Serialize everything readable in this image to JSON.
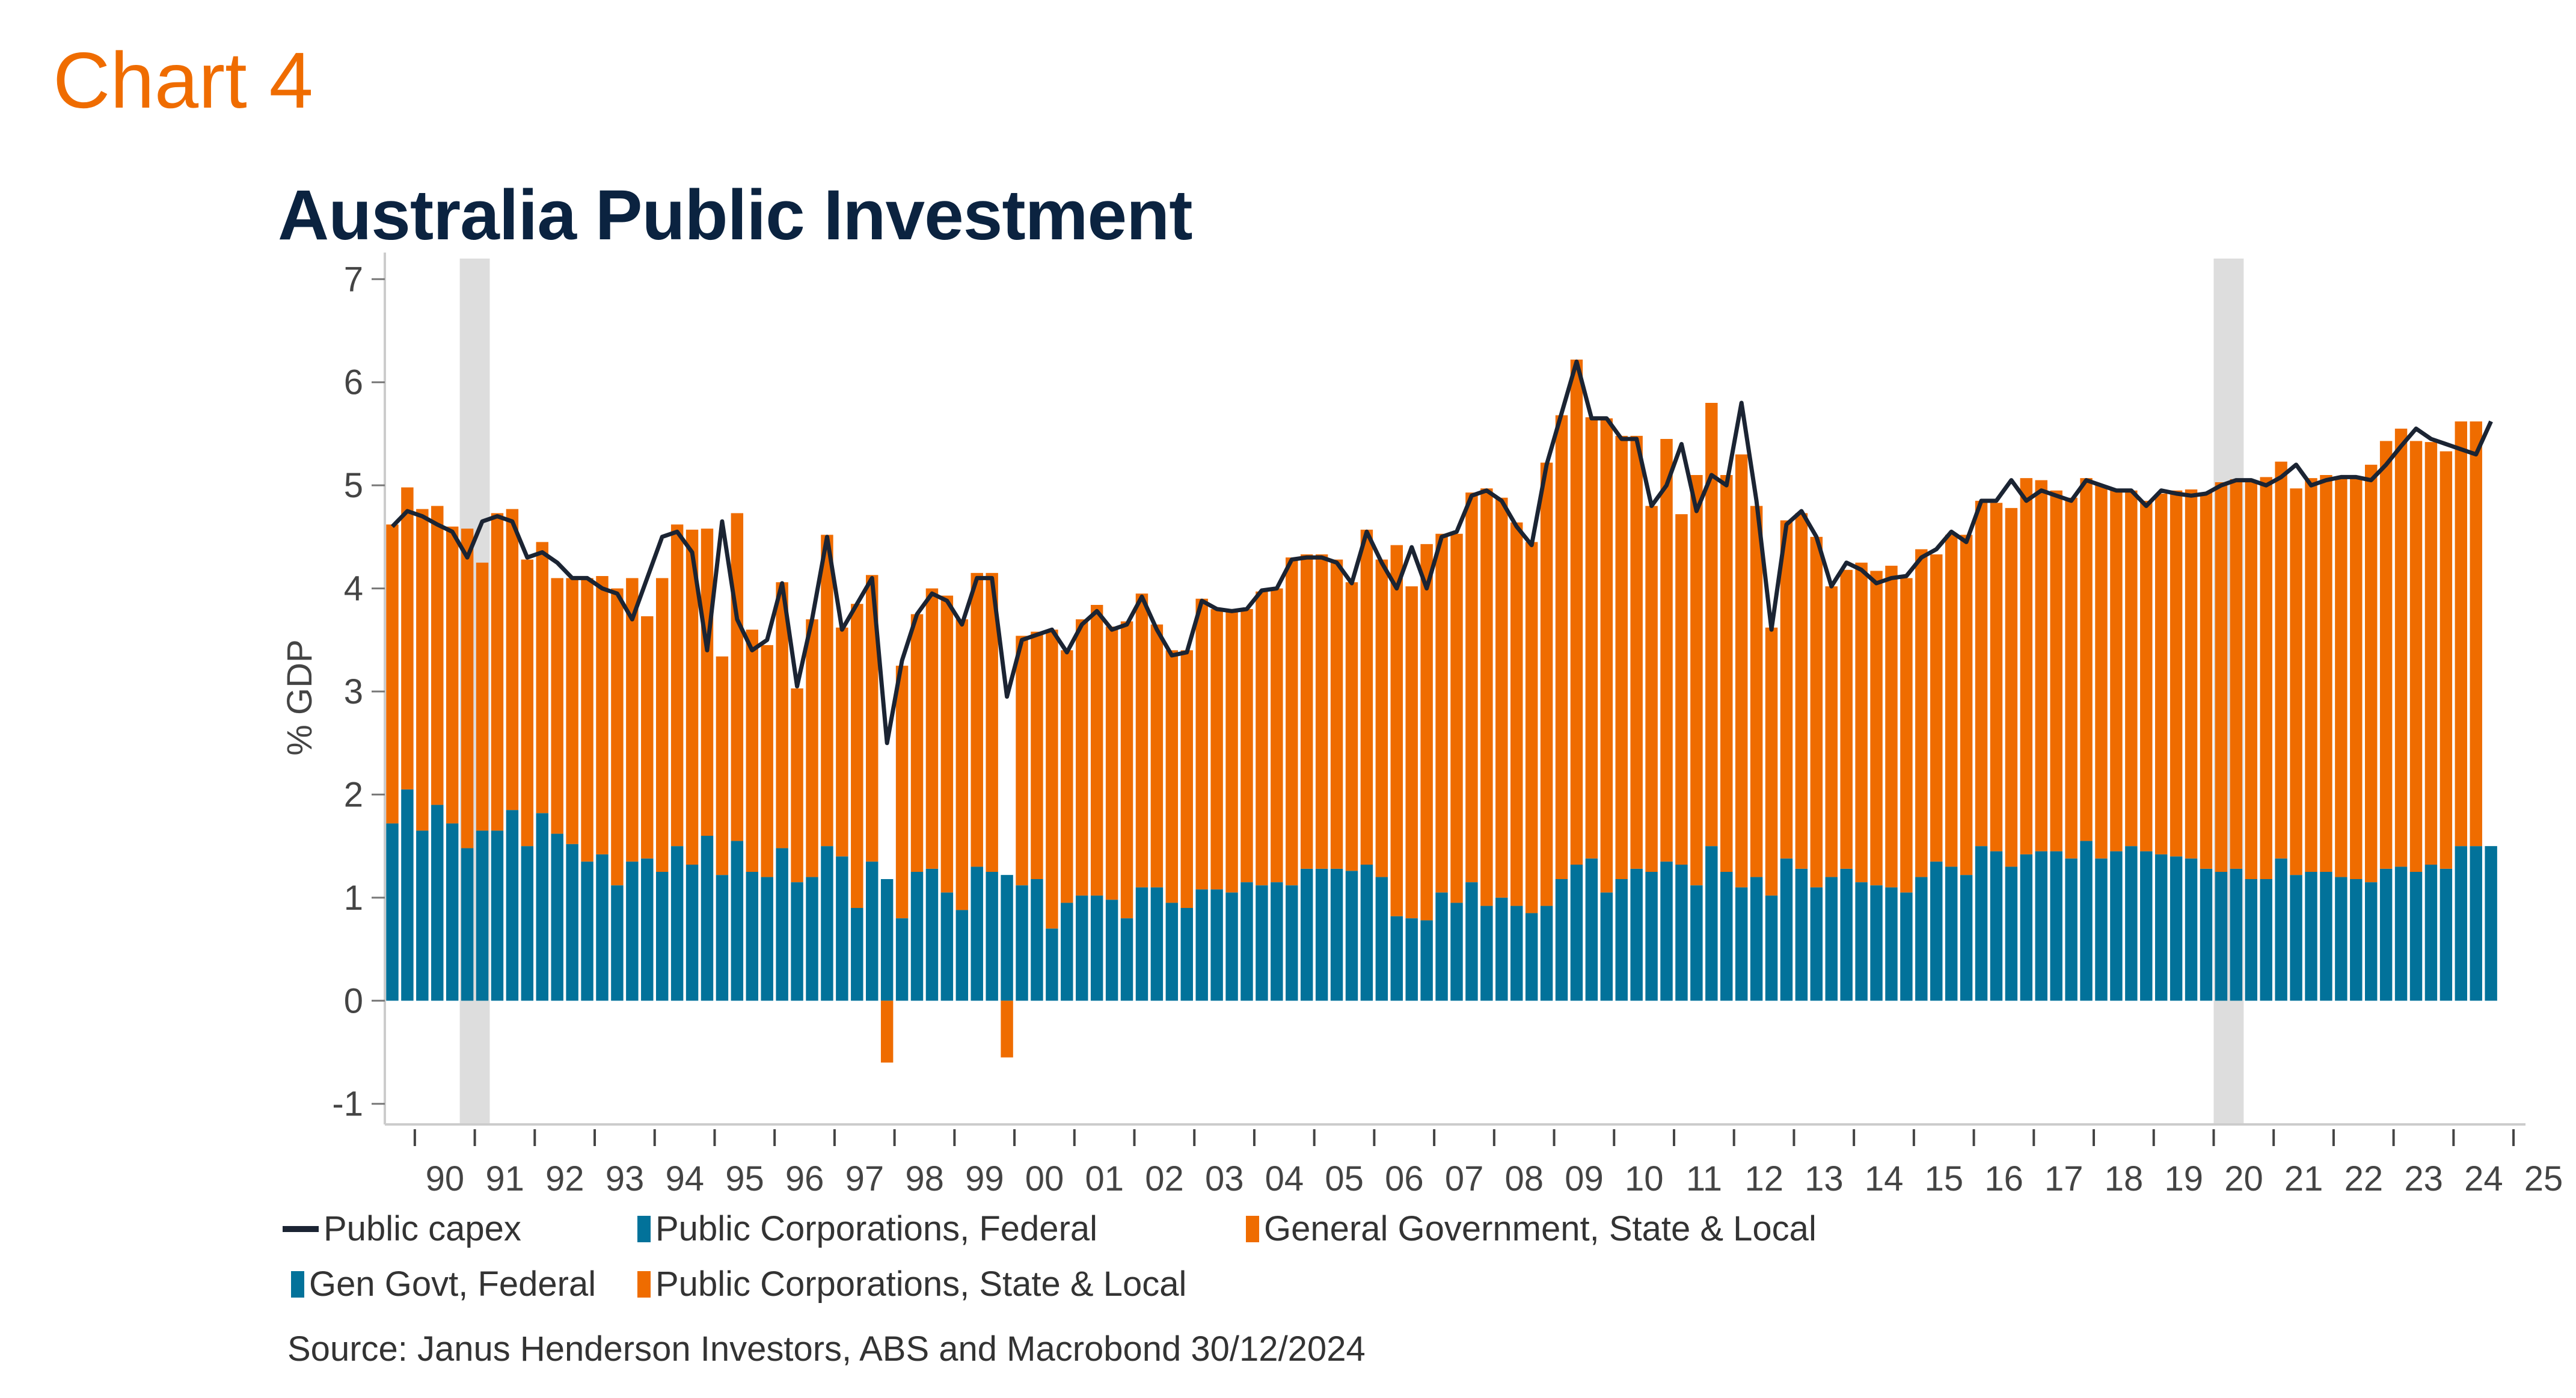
{
  "header": {
    "chart_label": "Chart 4",
    "title": "Australia Public Investment"
  },
  "colors": {
    "chart_label": "#ef6c00",
    "title": "#0b2340",
    "federal_blue": "#02729a",
    "state_local_orange": "#ef6c00",
    "capex_line": "#1b2433",
    "recession_shade": "#dddddd"
  },
  "legend": {
    "items": [
      {
        "label": "Public capex",
        "kind": "line",
        "color": "#1b2433"
      },
      {
        "label": "Public Corporations, Federal",
        "kind": "bar",
        "color": "#02729a"
      },
      {
        "label": "General Government, State & Local",
        "kind": "bar",
        "color": "#ef6c00"
      },
      {
        "label": "Gen Govt, Federal",
        "kind": "bar",
        "color": "#02729a"
      },
      {
        "label": "Public Corporations, State & Local",
        "kind": "bar",
        "color": "#ef6c00"
      }
    ]
  },
  "source": "Source: Janus Henderson Investors, ABS and Macrobond  30/12/2024",
  "chart_data": {
    "type": "bar",
    "stacked": true,
    "title": "Australia Public Investment",
    "xlabel": "",
    "ylabel": "% GDP",
    "ylim": [
      -1.2,
      7.2
    ],
    "yticks": [
      -1,
      0,
      1,
      2,
      3,
      4,
      5,
      6,
      7
    ],
    "xtick_labels": [
      "90",
      "91",
      "92",
      "93",
      "94",
      "95",
      "96",
      "97",
      "98",
      "99",
      "00",
      "01",
      "02",
      "03",
      "04",
      "05",
      "06",
      "07",
      "08",
      "09",
      "10",
      "11",
      "12",
      "13",
      "14",
      "15",
      "16",
      "17",
      "18",
      "19",
      "20",
      "21",
      "22",
      "23",
      "24",
      "25"
    ],
    "x_start": "1989Q3",
    "frequency": "quarterly",
    "x_range_years": [
      1989.5,
      2025.2
    ],
    "recession_shading": [
      [
        1990.75,
        1991.25
      ],
      [
        2020.0,
        2020.5
      ]
    ],
    "grid": false,
    "legend_position": "bottom",
    "series": [
      {
        "name": "Federal (Gen Govt + Public Corporations)",
        "color": "#02729a",
        "values": [
          1.72,
          2.05,
          1.65,
          1.9,
          1.72,
          1.48,
          1.65,
          1.65,
          1.85,
          1.5,
          1.82,
          1.62,
          1.52,
          1.35,
          1.42,
          1.12,
          1.35,
          1.38,
          1.25,
          1.5,
          1.32,
          1.6,
          1.22,
          1.55,
          1.25,
          1.2,
          1.48,
          1.15,
          1.2,
          1.5,
          1.4,
          0.9,
          1.35,
          1.18,
          0.8,
          1.25,
          1.28,
          1.05,
          0.88,
          1.3,
          1.25,
          1.22,
          1.12,
          1.18,
          0.7,
          0.95,
          1.02,
          1.02,
          0.98,
          0.8,
          1.1,
          1.1,
          0.95,
          0.9,
          1.08,
          1.08,
          1.05,
          1.15,
          1.12,
          1.15,
          1.12,
          1.28,
          1.28,
          1.28,
          1.26,
          1.32,
          1.2,
          0.82,
          0.8,
          0.78,
          1.05,
          0.95,
          1.15,
          0.92,
          1.0,
          0.92,
          0.85,
          0.92,
          1.18,
          1.32,
          1.38,
          1.05,
          1.18,
          1.28,
          1.25,
          1.35,
          1.32,
          1.12,
          1.5,
          1.25,
          1.1,
          1.2,
          1.02,
          1.38,
          1.28,
          1.1,
          1.2,
          1.28,
          1.15,
          1.12,
          1.1,
          1.05,
          1.2,
          1.35,
          1.3,
          1.22,
          1.5,
          1.45,
          1.3,
          1.42,
          1.45,
          1.45,
          1.38,
          1.55,
          1.38,
          1.45,
          1.5,
          1.45,
          1.42,
          1.4,
          1.38,
          1.28,
          1.25,
          1.28,
          1.18,
          1.18,
          1.38,
          1.22,
          1.25,
          1.25,
          1.2,
          1.18,
          1.15,
          1.28,
          1.3,
          1.25,
          1.32,
          1.28,
          1.5,
          1.5,
          1.5
        ]
      },
      {
        "name": "State & Local (Gen Govt + Public Corporations)",
        "color": "#ef6c00",
        "values": [
          2.9,
          2.93,
          3.12,
          2.9,
          2.88,
          3.1,
          2.6,
          3.08,
          2.92,
          2.78,
          2.63,
          2.48,
          2.58,
          2.75,
          2.7,
          2.88,
          2.75,
          2.35,
          2.85,
          3.12,
          3.25,
          2.98,
          2.12,
          3.18,
          2.35,
          2.25,
          2.58,
          1.88,
          2.5,
          3.02,
          2.22,
          2.95,
          2.78,
          -0.6,
          2.45,
          2.5,
          2.72,
          2.88,
          2.82,
          2.85,
          2.9,
          -0.55,
          2.42,
          2.4,
          2.9,
          2.45,
          2.68,
          2.82,
          2.65,
          2.88,
          2.85,
          2.55,
          2.45,
          2.5,
          2.82,
          2.72,
          2.75,
          2.65,
          2.85,
          2.85,
          3.18,
          3.05,
          3.05,
          3.0,
          2.8,
          3.25,
          3.08,
          3.6,
          3.22,
          3.65,
          3.48,
          3.58,
          3.78,
          4.05,
          3.88,
          3.72,
          3.6,
          4.3,
          4.5,
          4.9,
          4.28,
          4.6,
          4.3,
          4.2,
          3.55,
          4.1,
          3.4,
          3.98,
          4.3,
          3.85,
          4.2,
          3.6,
          2.6,
          3.28,
          3.45,
          3.4,
          2.82,
          2.9,
          3.1,
          3.05,
          3.12,
          3.05,
          3.18,
          2.98,
          3.22,
          3.3,
          3.35,
          3.38,
          3.48,
          3.65,
          3.6,
          3.5,
          3.5,
          3.52,
          3.62,
          3.5,
          3.45,
          3.4,
          3.5,
          3.55,
          3.58,
          3.65,
          3.78,
          3.78,
          3.85,
          3.9,
          3.85,
          3.75,
          3.82,
          3.85,
          3.88,
          3.9,
          4.05,
          4.15,
          4.25,
          4.18,
          4.1,
          4.05,
          4.12,
          4.12
        ]
      }
    ],
    "line_series": {
      "name": "Public capex",
      "color": "#1b2433",
      "values": [
        4.6,
        4.75,
        4.7,
        4.62,
        4.55,
        4.3,
        4.65,
        4.7,
        4.65,
        4.3,
        4.35,
        4.25,
        4.1,
        4.1,
        4.0,
        3.95,
        3.7,
        4.1,
        4.5,
        4.55,
        4.35,
        3.4,
        4.65,
        3.7,
        3.4,
        3.5,
        4.05,
        3.05,
        3.7,
        4.5,
        3.6,
        3.85,
        4.1,
        2.5,
        3.3,
        3.75,
        3.95,
        3.88,
        3.65,
        4.1,
        4.1,
        2.95,
        3.5,
        3.55,
        3.6,
        3.38,
        3.65,
        3.78,
        3.6,
        3.65,
        3.92,
        3.6,
        3.35,
        3.38,
        3.88,
        3.8,
        3.78,
        3.8,
        3.98,
        4.0,
        4.28,
        4.3,
        4.3,
        4.25,
        4.05,
        4.55,
        4.25,
        4.0,
        4.4,
        4.0,
        4.5,
        4.55,
        4.9,
        4.95,
        4.85,
        4.6,
        4.42,
        5.2,
        5.7,
        6.2,
        5.65,
        5.65,
        5.45,
        5.45,
        4.8,
        5.0,
        5.4,
        4.75,
        5.1,
        5.0,
        5.8,
        4.85,
        3.6,
        4.62,
        4.75,
        4.5,
        4.02,
        4.25,
        4.18,
        4.05,
        4.1,
        4.12,
        4.3,
        4.38,
        4.55,
        4.45,
        4.85,
        4.85,
        5.05,
        4.85,
        4.95,
        4.9,
        4.85,
        5.05,
        5.0,
        4.95,
        4.95,
        4.8,
        4.95,
        4.92,
        4.9,
        4.92,
        5.0,
        5.05,
        5.05,
        5.0,
        5.08,
        5.2,
        5.0,
        5.05,
        5.08,
        5.08,
        5.05,
        5.2,
        5.38,
        5.55,
        5.45,
        5.4,
        5.35,
        5.3,
        5.62
      ]
    }
  }
}
